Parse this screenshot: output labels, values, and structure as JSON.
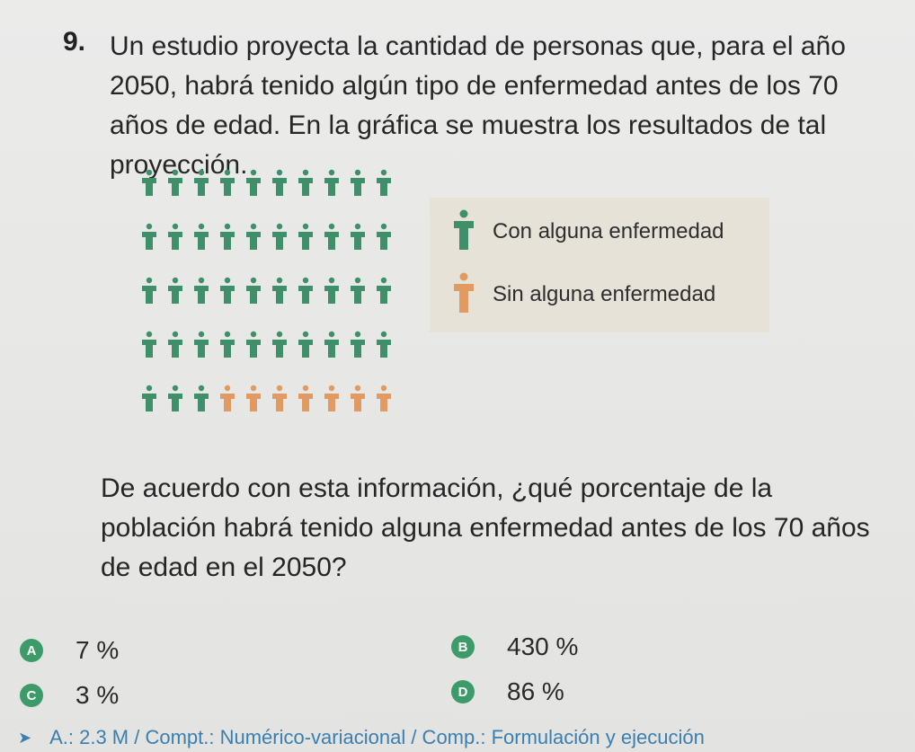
{
  "question": {
    "number": "9.",
    "text": "Un estudio proyecta la cantidad de personas que, para el año 2050, habrá tenido algún tipo de enfermedad antes de los 70 años de edad. En la gráfica se muestra los resultados de tal proyección."
  },
  "colors": {
    "with_disease": "#3e8f6a",
    "without_disease": "#e09a62",
    "badge": "#3d9b6a",
    "footer": "#3b7fb0"
  },
  "pictogram": {
    "rows": 5,
    "cols": 10,
    "with_disease_count": 43,
    "without_disease_count": 7
  },
  "legend": {
    "with_label": "Con alguna enfermedad",
    "without_label": "Sin alguna enfermedad"
  },
  "prompt": "De acuerdo con esta información, ¿qué porcentaje de la población habrá tenido alguna enfermedad antes de los 70 años de edad en el 2050?",
  "options": [
    {
      "letter": "A",
      "text": "7 %"
    },
    {
      "letter": "B",
      "text": "430 %"
    },
    {
      "letter": "C",
      "text": "3 %"
    },
    {
      "letter": "D",
      "text": "86 %"
    }
  ],
  "footer": {
    "text": "A.: 2.3 M / Compt.: Numérico-variacional / Comp.: Formulación y ejecución"
  }
}
